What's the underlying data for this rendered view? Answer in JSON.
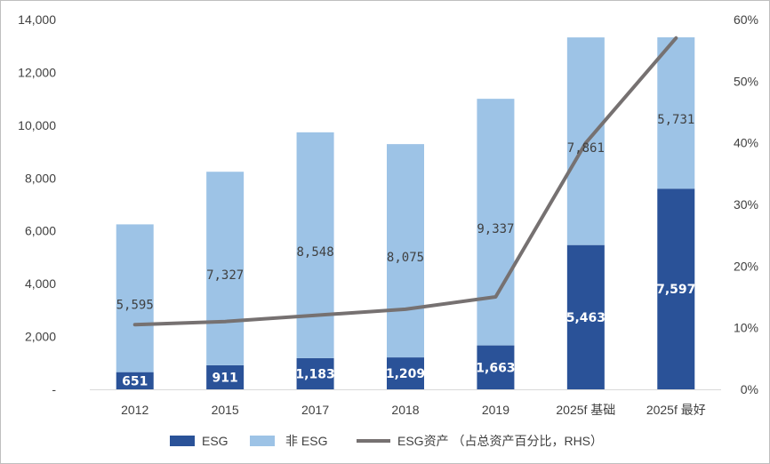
{
  "chart_data": {
    "type": "bar",
    "stacked": true,
    "categories": [
      "2012",
      "2015",
      "2017",
      "2018",
      "2019",
      "2025f 基础",
      "2025f 最好"
    ],
    "series": [
      {
        "name": "ESG",
        "color": "#2a5298",
        "values": [
          651,
          911,
          1183,
          1209,
          1663,
          5463,
          7597
        ],
        "labels": [
          "651",
          "911",
          "1,183",
          "1,209",
          "1,663",
          "5,463",
          "7,597"
        ]
      },
      {
        "name": "非  ESG",
        "color": "#9dc3e6",
        "values": [
          5595,
          7327,
          8548,
          8075,
          9337,
          7861,
          5731
        ],
        "labels": [
          "5,595",
          "7,327",
          "8,548",
          "8,075",
          "9,337",
          "7,861",
          "5,731"
        ]
      }
    ],
    "line_series": {
      "name": "ESG资产 （占总资产百分比，RHS）",
      "color": "#767171",
      "axis": "right",
      "values": [
        10.5,
        11,
        12,
        13,
        15,
        40,
        57
      ]
    },
    "ylim": [
      0,
      14000
    ],
    "y_ticks": [
      {
        "value": 0,
        "label": "-"
      },
      {
        "value": 2000,
        "label": "2,000"
      },
      {
        "value": 4000,
        "label": "4,000"
      },
      {
        "value": 6000,
        "label": "6,000"
      },
      {
        "value": 8000,
        "label": "8,000"
      },
      {
        "value": 10000,
        "label": "10,000"
      },
      {
        "value": 12000,
        "label": "12,000"
      },
      {
        "value": 14000,
        "label": "14,000"
      }
    ],
    "y2lim": [
      0,
      60
    ],
    "y2_ticks": [
      {
        "value": 0,
        "label": "0%"
      },
      {
        "value": 10,
        "label": "10%"
      },
      {
        "value": 20,
        "label": "20%"
      },
      {
        "value": 30,
        "label": "30%"
      },
      {
        "value": 40,
        "label": "40%"
      },
      {
        "value": 50,
        "label": "50%"
      },
      {
        "value": 60,
        "label": "60%"
      }
    ],
    "legend_position": "bottom",
    "grid": false
  }
}
